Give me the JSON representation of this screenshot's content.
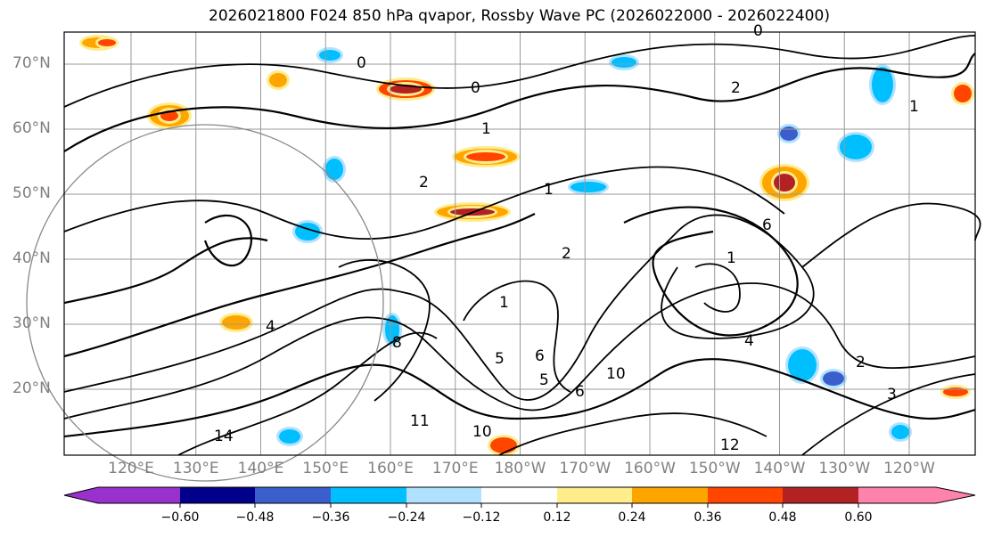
{
  "title": "2026021800 F024 850 hPa qvapor, Rossby Wave PC (2026022000 - 2026022400)",
  "lat_labels": [
    "70°N",
    "60°N",
    "50°N",
    "40°N",
    "30°N",
    "20°N"
  ],
  "lon_labels": [
    "120°E",
    "130°E",
    "140°E",
    "150°E",
    "160°E",
    "170°E",
    "180°W",
    "170°W",
    "160°W",
    "150°W",
    "140°W",
    "130°W",
    "120°W"
  ],
  "colorbar": {
    "ticks": [
      "−0.60",
      "−0.48",
      "−0.36",
      "−0.24",
      "−0.12",
      "0.12",
      "0.24",
      "0.36",
      "0.48",
      "0.60"
    ],
    "colors": [
      "#9932cc",
      "#00008b",
      "#3a5fcd",
      "#00bfff",
      "#b0e2ff",
      "#ffffff",
      "#ffec8b",
      "#ffa500",
      "#ff4500",
      "#b22222",
      "#ff82ab"
    ]
  },
  "contour_labels": [
    "0",
    "0",
    "2",
    "1",
    "1",
    "1",
    "2",
    "6",
    "1",
    "4",
    "2",
    "3",
    "5",
    "6",
    "10",
    "11",
    "10",
    "12",
    "14",
    "5",
    "6",
    "8",
    "4",
    "2",
    "1",
    "0"
  ]
}
